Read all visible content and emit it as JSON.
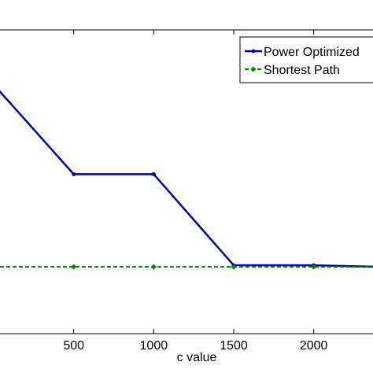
{
  "chart_data": {
    "type": "line",
    "xlabel": "c value",
    "ylabel": "",
    "title": "",
    "xlim": [
      0,
      2400
    ],
    "ylim": [
      0,
      1
    ],
    "grid": false,
    "legend_position": "top-right",
    "x_ticks": [
      {
        "value": 500,
        "label": "500"
      },
      {
        "value": 1000,
        "label": "1000"
      },
      {
        "value": 1500,
        "label": "1500"
      },
      {
        "value": 2000,
        "label": "2000"
      }
    ],
    "series": [
      {
        "name": "Power Optimized",
        "color": "#0000a8",
        "style": "solid",
        "marker": "dot",
        "x": [
          0,
          500,
          1000,
          1500,
          2000,
          2400
        ],
        "y": [
          0.82,
          0.525,
          0.525,
          0.225,
          0.225,
          0.22
        ]
      },
      {
        "name": "Shortest Path",
        "color": "#007f00",
        "style": "dashed",
        "marker": "diamond",
        "x": [
          0,
          500,
          1000,
          1500,
          2000,
          2400
        ],
        "y": [
          0.22,
          0.22,
          0.22,
          0.22,
          0.22,
          0.22
        ]
      }
    ]
  }
}
